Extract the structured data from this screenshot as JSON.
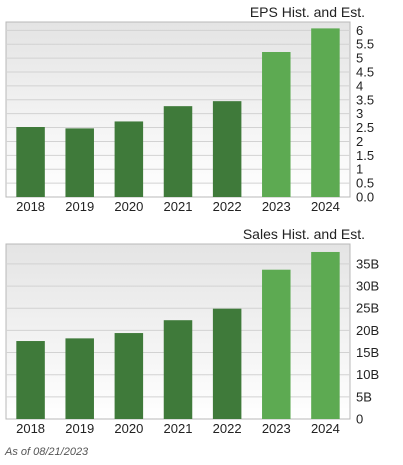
{
  "footnote": "As of 08/21/2023",
  "colors": {
    "historical": "#3f7a3a",
    "estimate": "#5daa52",
    "plot_bg_top": "#e4e4e4",
    "plot_bg_bottom": "#ffffff",
    "grid": "#d2d2d2",
    "border": "#b8b8b8"
  },
  "chart_data": [
    {
      "type": "bar",
      "title": "EPS Hist. and Est.",
      "categories": [
        "2018",
        "2019",
        "2020",
        "2021",
        "2022",
        "2023",
        "2024"
      ],
      "series": [
        {
          "values": [
            2.52,
            2.47,
            2.72,
            3.27,
            3.45,
            5.22,
            6.07
          ]
        }
      ],
      "estimate_flags": [
        false,
        false,
        false,
        false,
        false,
        true,
        true
      ],
      "ylim": [
        0,
        6.3
      ],
      "yticks": [
        0,
        0.5,
        1,
        1.5,
        2,
        2.5,
        3,
        3.5,
        4,
        4.5,
        5,
        5.5,
        6
      ],
      "ytick_labels": [
        "0.0",
        "0.5",
        "1",
        "1.5",
        "2",
        "2.5",
        "3",
        "3.5",
        "4",
        "4.5",
        "5",
        "5.5",
        "6"
      ],
      "grid": true,
      "legend": "none"
    },
    {
      "type": "bar",
      "title": "Sales Hist. and Est.",
      "categories": [
        "2018",
        "2019",
        "2020",
        "2021",
        "2022",
        "2023",
        "2024"
      ],
      "series": [
        {
          "values": [
            17.6,
            18.2,
            19.4,
            22.3,
            24.9,
            33.7,
            37.7
          ]
        }
      ],
      "estimate_flags": [
        false,
        false,
        false,
        false,
        false,
        true,
        true
      ],
      "ylim": [
        0,
        39.5
      ],
      "yticks": [
        0,
        5,
        10,
        15,
        20,
        25,
        30,
        35
      ],
      "ytick_labels": [
        "0",
        "5B",
        "10B",
        "15B",
        "20B",
        "25B",
        "30B",
        "35B"
      ],
      "unit": "B",
      "grid": true,
      "legend": "none"
    }
  ]
}
